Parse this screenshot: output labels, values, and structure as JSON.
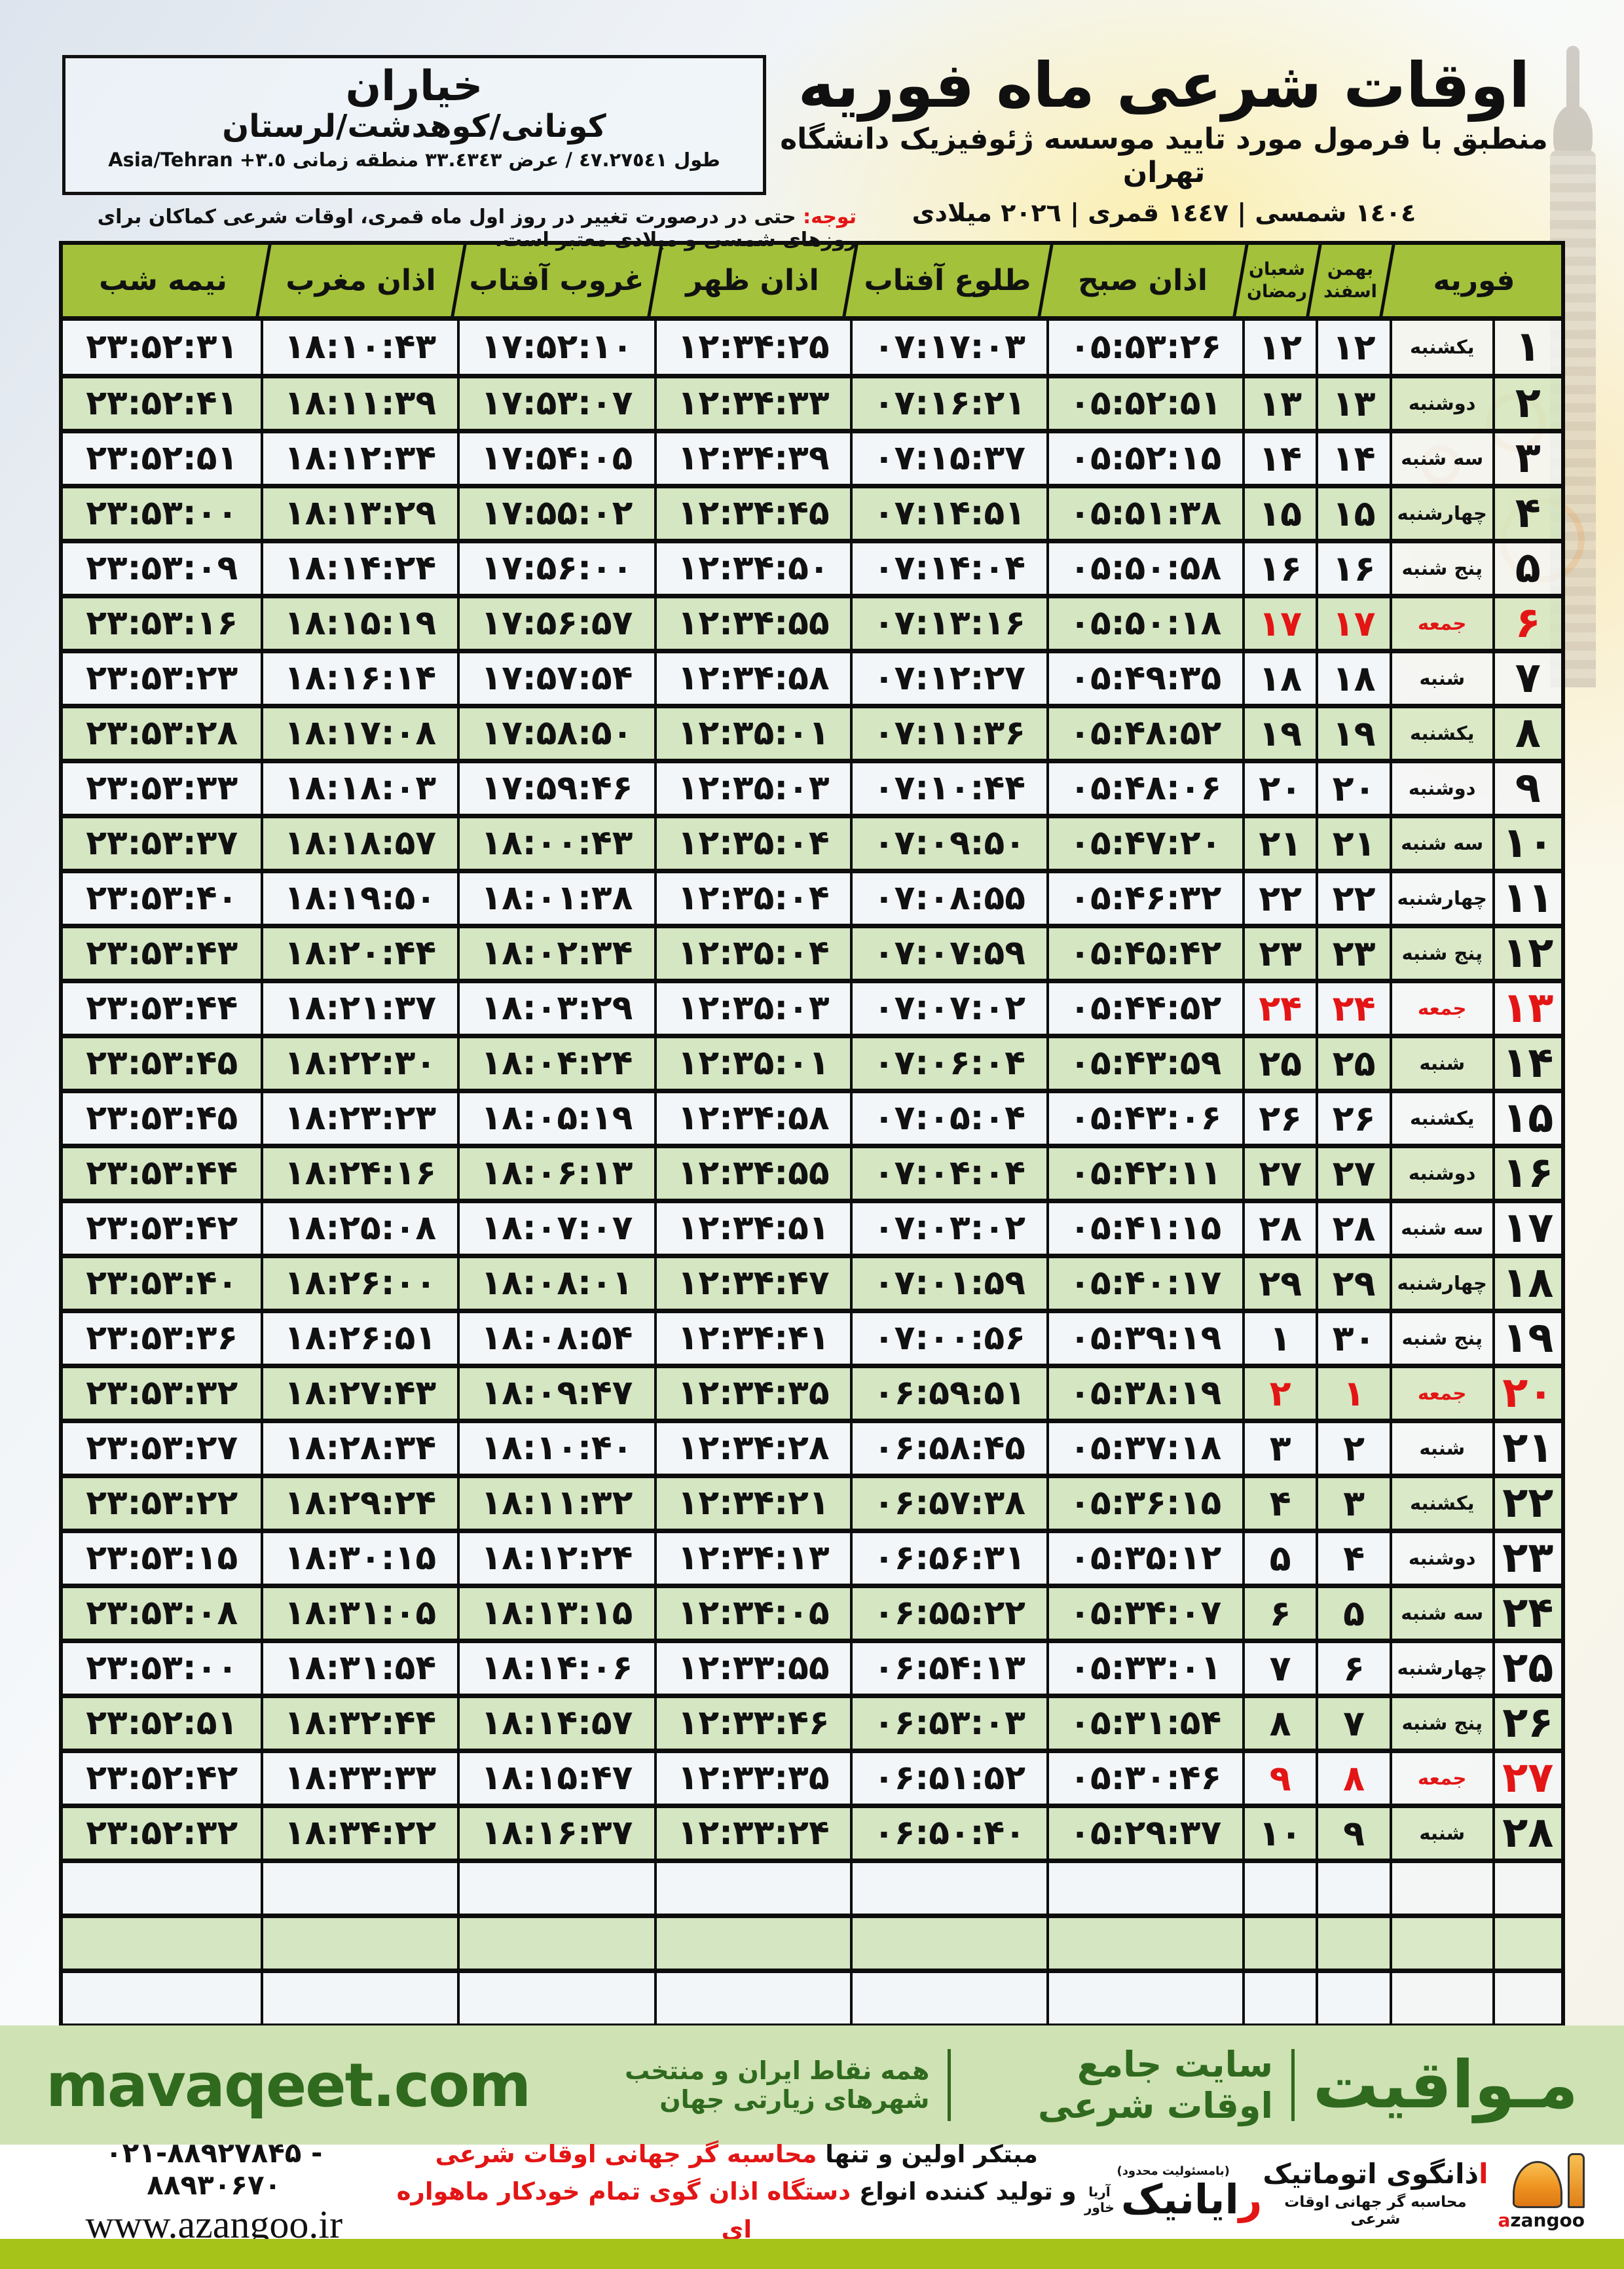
{
  "title_block": {
    "title": "اوقات شرعی ماه فوریه",
    "subtitle": "منطبق با فرمول مورد تایید موسسه ژئوفیزیک دانشگاه تهران",
    "date_line": "١٤٠٤ شمسی | ١٤٤٧ قمری | ٢٠٢٦ میلادی"
  },
  "location_box": {
    "name": "خیاران",
    "region": "کونانی/کوهدشت/لرستان",
    "coords": "طول ٤٧.٢٧٥٤١ / عرض ٣٣.٤٣٤٣ منطقه زمانی",
    "timezone": "Asia/Tehran +٣.٥"
  },
  "notice": {
    "label": "توجه:",
    "text": " حتی در درصورت تغییر در روز اول ماه قمری، اوقات شرعی کماکان برای روزهای شمسی و میلادی معتبر است."
  },
  "table": {
    "headers": {
      "month": "فوریه",
      "solar_top": "بهمن",
      "solar_bottom": "اسفند",
      "lunar_top": "شعبان",
      "lunar_bottom": "رمضان",
      "fajr": "اذان صبح",
      "sunrise": "طلوع آفتاب",
      "dhuhr": "اذان ظهر",
      "sunset": "غروب آفتاب",
      "maghrib": "اذان مغرب",
      "midnight": "نیمه شب"
    },
    "column_keys": [
      "feb",
      "day",
      "solar",
      "lunar",
      "fajr",
      "sunrise",
      "dhuhr",
      "sunset",
      "maghrib",
      "midnight"
    ],
    "empty_row_count": 3,
    "rows": [
      {
        "feb": "۱",
        "day": "یکشنبه",
        "solar": "۱۲",
        "lunar": "۱۲",
        "fajr": "۰۵:۵۳:۲۶",
        "sunrise": "۰۷:۱۷:۰۳",
        "dhuhr": "۱۲:۳۴:۲۵",
        "sunset": "۱۷:۵۲:۱۰",
        "maghrib": "۱۸:۱۰:۴۳",
        "midnight": "۲۳:۵۲:۳۱",
        "friday": false
      },
      {
        "feb": "۲",
        "day": "دوشنبه",
        "solar": "۱۳",
        "lunar": "۱۳",
        "fajr": "۰۵:۵۲:۵۱",
        "sunrise": "۰۷:۱۶:۲۱",
        "dhuhr": "۱۲:۳۴:۳۳",
        "sunset": "۱۷:۵۳:۰۷",
        "maghrib": "۱۸:۱۱:۳۹",
        "midnight": "۲۳:۵۲:۴۱",
        "friday": false
      },
      {
        "feb": "۳",
        "day": "سه شنبه",
        "solar": "۱۴",
        "lunar": "۱۴",
        "fajr": "۰۵:۵۲:۱۵",
        "sunrise": "۰۷:۱۵:۳۷",
        "dhuhr": "۱۲:۳۴:۳۹",
        "sunset": "۱۷:۵۴:۰۵",
        "maghrib": "۱۸:۱۲:۳۴",
        "midnight": "۲۳:۵۲:۵۱",
        "friday": false
      },
      {
        "feb": "۴",
        "day": "چهارشنبه",
        "solar": "۱۵",
        "lunar": "۱۵",
        "fajr": "۰۵:۵۱:۳۸",
        "sunrise": "۰۷:۱۴:۵۱",
        "dhuhr": "۱۲:۳۴:۴۵",
        "sunset": "۱۷:۵۵:۰۲",
        "maghrib": "۱۸:۱۳:۲۹",
        "midnight": "۲۳:۵۳:۰۰",
        "friday": false
      },
      {
        "feb": "۵",
        "day": "پنج شنبه",
        "solar": "۱۶",
        "lunar": "۱۶",
        "fajr": "۰۵:۵۰:۵۸",
        "sunrise": "۰۷:۱۴:۰۴",
        "dhuhr": "۱۲:۳۴:۵۰",
        "sunset": "۱۷:۵۶:۰۰",
        "maghrib": "۱۸:۱۴:۲۴",
        "midnight": "۲۳:۵۳:۰۹",
        "friday": false
      },
      {
        "feb": "۶",
        "day": "جمعه",
        "solar": "۱۷",
        "lunar": "۱۷",
        "fajr": "۰۵:۵۰:۱۸",
        "sunrise": "۰۷:۱۳:۱۶",
        "dhuhr": "۱۲:۳۴:۵۵",
        "sunset": "۱۷:۵۶:۵۷",
        "maghrib": "۱۸:۱۵:۱۹",
        "midnight": "۲۳:۵۳:۱۶",
        "friday": true
      },
      {
        "feb": "۷",
        "day": "شنبه",
        "solar": "۱۸",
        "lunar": "۱۸",
        "fajr": "۰۵:۴۹:۳۵",
        "sunrise": "۰۷:۱۲:۲۷",
        "dhuhr": "۱۲:۳۴:۵۸",
        "sunset": "۱۷:۵۷:۵۴",
        "maghrib": "۱۸:۱۶:۱۴",
        "midnight": "۲۳:۵۳:۲۳",
        "friday": false
      },
      {
        "feb": "۸",
        "day": "یکشنبه",
        "solar": "۱۹",
        "lunar": "۱۹",
        "fajr": "۰۵:۴۸:۵۲",
        "sunrise": "۰۷:۱۱:۳۶",
        "dhuhr": "۱۲:۳۵:۰۱",
        "sunset": "۱۷:۵۸:۵۰",
        "maghrib": "۱۸:۱۷:۰۸",
        "midnight": "۲۳:۵۳:۲۸",
        "friday": false
      },
      {
        "feb": "۹",
        "day": "دوشنبه",
        "solar": "۲۰",
        "lunar": "۲۰",
        "fajr": "۰۵:۴۸:۰۶",
        "sunrise": "۰۷:۱۰:۴۴",
        "dhuhr": "۱۲:۳۵:۰۳",
        "sunset": "۱۷:۵۹:۴۶",
        "maghrib": "۱۸:۱۸:۰۳",
        "midnight": "۲۳:۵۳:۳۳",
        "friday": false
      },
      {
        "feb": "۱۰",
        "day": "سه شنبه",
        "solar": "۲۱",
        "lunar": "۲۱",
        "fajr": "۰۵:۴۷:۲۰",
        "sunrise": "۰۷:۰۹:۵۰",
        "dhuhr": "۱۲:۳۵:۰۴",
        "sunset": "۱۸:۰۰:۴۳",
        "maghrib": "۱۸:۱۸:۵۷",
        "midnight": "۲۳:۵۳:۳۷",
        "friday": false
      },
      {
        "feb": "۱۱",
        "day": "چهارشنبه",
        "solar": "۲۲",
        "lunar": "۲۲",
        "fajr": "۰۵:۴۶:۳۲",
        "sunrise": "۰۷:۰۸:۵۵",
        "dhuhr": "۱۲:۳۵:۰۴",
        "sunset": "۱۸:۰۱:۳۸",
        "maghrib": "۱۸:۱۹:۵۰",
        "midnight": "۲۳:۵۳:۴۰",
        "friday": false
      },
      {
        "feb": "۱۲",
        "day": "پنج شنبه",
        "solar": "۲۳",
        "lunar": "۲۳",
        "fajr": "۰۵:۴۵:۴۲",
        "sunrise": "۰۷:۰۷:۵۹",
        "dhuhr": "۱۲:۳۵:۰۴",
        "sunset": "۱۸:۰۲:۳۴",
        "maghrib": "۱۸:۲۰:۴۴",
        "midnight": "۲۳:۵۳:۴۳",
        "friday": false
      },
      {
        "feb": "۱۳",
        "day": "جمعه",
        "solar": "۲۴",
        "lunar": "۲۴",
        "fajr": "۰۵:۴۴:۵۲",
        "sunrise": "۰۷:۰۷:۰۲",
        "dhuhr": "۱۲:۳۵:۰۳",
        "sunset": "۱۸:۰۳:۲۹",
        "maghrib": "۱۸:۲۱:۳۷",
        "midnight": "۲۳:۵۳:۴۴",
        "friday": true
      },
      {
        "feb": "۱۴",
        "day": "شنبه",
        "solar": "۲۵",
        "lunar": "۲۵",
        "fajr": "۰۵:۴۳:۵۹",
        "sunrise": "۰۷:۰۶:۰۴",
        "dhuhr": "۱۲:۳۵:۰۱",
        "sunset": "۱۸:۰۴:۲۴",
        "maghrib": "۱۸:۲۲:۳۰",
        "midnight": "۲۳:۵۳:۴۵",
        "friday": false
      },
      {
        "feb": "۱۵",
        "day": "یکشنبه",
        "solar": "۲۶",
        "lunar": "۲۶",
        "fajr": "۰۵:۴۳:۰۶",
        "sunrise": "۰۷:۰۵:۰۴",
        "dhuhr": "۱۲:۳۴:۵۸",
        "sunset": "۱۸:۰۵:۱۹",
        "maghrib": "۱۸:۲۳:۲۳",
        "midnight": "۲۳:۵۳:۴۵",
        "friday": false
      },
      {
        "feb": "۱۶",
        "day": "دوشنبه",
        "solar": "۲۷",
        "lunar": "۲۷",
        "fajr": "۰۵:۴۲:۱۱",
        "sunrise": "۰۷:۰۴:۰۴",
        "dhuhr": "۱۲:۳۴:۵۵",
        "sunset": "۱۸:۰۶:۱۳",
        "maghrib": "۱۸:۲۴:۱۶",
        "midnight": "۲۳:۵۳:۴۴",
        "friday": false
      },
      {
        "feb": "۱۷",
        "day": "سه شنبه",
        "solar": "۲۸",
        "lunar": "۲۸",
        "fajr": "۰۵:۴۱:۱۵",
        "sunrise": "۰۷:۰۳:۰۲",
        "dhuhr": "۱۲:۳۴:۵۱",
        "sunset": "۱۸:۰۷:۰۷",
        "maghrib": "۱۸:۲۵:۰۸",
        "midnight": "۲۳:۵۳:۴۲",
        "friday": false
      },
      {
        "feb": "۱۸",
        "day": "چهارشنبه",
        "solar": "۲۹",
        "lunar": "۲۹",
        "fajr": "۰۵:۴۰:۱۷",
        "sunrise": "۰۷:۰۱:۵۹",
        "dhuhr": "۱۲:۳۴:۴۷",
        "sunset": "۱۸:۰۸:۰۱",
        "maghrib": "۱۸:۲۶:۰۰",
        "midnight": "۲۳:۵۳:۴۰",
        "friday": false
      },
      {
        "feb": "۱۹",
        "day": "پنج شنبه",
        "solar": "۳۰",
        "lunar": "۱",
        "fajr": "۰۵:۳۹:۱۹",
        "sunrise": "۰۷:۰۰:۵۶",
        "dhuhr": "۱۲:۳۴:۴۱",
        "sunset": "۱۸:۰۸:۵۴",
        "maghrib": "۱۸:۲۶:۵۱",
        "midnight": "۲۳:۵۳:۳۶",
        "friday": false
      },
      {
        "feb": "۲۰",
        "day": "جمعه",
        "solar": "۱",
        "lunar": "۲",
        "fajr": "۰۵:۳۸:۱۹",
        "sunrise": "۰۶:۵۹:۵۱",
        "dhuhr": "۱۲:۳۴:۳۵",
        "sunset": "۱۸:۰۹:۴۷",
        "maghrib": "۱۸:۲۷:۴۳",
        "midnight": "۲۳:۵۳:۳۲",
        "friday": true
      },
      {
        "feb": "۲۱",
        "day": "شنبه",
        "solar": "۲",
        "lunar": "۳",
        "fajr": "۰۵:۳۷:۱۸",
        "sunrise": "۰۶:۵۸:۴۵",
        "dhuhr": "۱۲:۳۴:۲۸",
        "sunset": "۱۸:۱۰:۴۰",
        "maghrib": "۱۸:۲۸:۳۴",
        "midnight": "۲۳:۵۳:۲۷",
        "friday": false
      },
      {
        "feb": "۲۲",
        "day": "یکشنبه",
        "solar": "۳",
        "lunar": "۴",
        "fajr": "۰۵:۳۶:۱۵",
        "sunrise": "۰۶:۵۷:۳۸",
        "dhuhr": "۱۲:۳۴:۲۱",
        "sunset": "۱۸:۱۱:۳۲",
        "maghrib": "۱۸:۲۹:۲۴",
        "midnight": "۲۳:۵۳:۲۲",
        "friday": false
      },
      {
        "feb": "۲۳",
        "day": "دوشنبه",
        "solar": "۴",
        "lunar": "۵",
        "fajr": "۰۵:۳۵:۱۲",
        "sunrise": "۰۶:۵۶:۳۱",
        "dhuhr": "۱۲:۳۴:۱۳",
        "sunset": "۱۸:۱۲:۲۴",
        "maghrib": "۱۸:۳۰:۱۵",
        "midnight": "۲۳:۵۳:۱۵",
        "friday": false
      },
      {
        "feb": "۲۴",
        "day": "سه شنبه",
        "solar": "۵",
        "lunar": "۶",
        "fajr": "۰۵:۳۴:۰۷",
        "sunrise": "۰۶:۵۵:۲۲",
        "dhuhr": "۱۲:۳۴:۰۵",
        "sunset": "۱۸:۱۳:۱۵",
        "maghrib": "۱۸:۳۱:۰۵",
        "midnight": "۲۳:۵۳:۰۸",
        "friday": false
      },
      {
        "feb": "۲۵",
        "day": "چهارشنبه",
        "solar": "۶",
        "lunar": "۷",
        "fajr": "۰۵:۳۳:۰۱",
        "sunrise": "۰۶:۵۴:۱۳",
        "dhuhr": "۱۲:۳۳:۵۵",
        "sunset": "۱۸:۱۴:۰۶",
        "maghrib": "۱۸:۳۱:۵۴",
        "midnight": "۲۳:۵۳:۰۰",
        "friday": false
      },
      {
        "feb": "۲۶",
        "day": "پنج شنبه",
        "solar": "۷",
        "lunar": "۸",
        "fajr": "۰۵:۳۱:۵۴",
        "sunrise": "۰۶:۵۳:۰۳",
        "dhuhr": "۱۲:۳۳:۴۶",
        "sunset": "۱۸:۱۴:۵۷",
        "maghrib": "۱۸:۳۲:۴۴",
        "midnight": "۲۳:۵۲:۵۱",
        "friday": false
      },
      {
        "feb": "۲۷",
        "day": "جمعه",
        "solar": "۸",
        "lunar": "۹",
        "fajr": "۰۵:۳۰:۴۶",
        "sunrise": "۰۶:۵۱:۵۲",
        "dhuhr": "۱۲:۳۳:۳۵",
        "sunset": "۱۸:۱۵:۴۷",
        "maghrib": "۱۸:۳۳:۳۳",
        "midnight": "۲۳:۵۲:۴۲",
        "friday": true
      },
      {
        "feb": "۲۸",
        "day": "شنبه",
        "solar": "۹",
        "lunar": "۱۰",
        "fajr": "۰۵:۲۹:۳۷",
        "sunrise": "۰۶:۵۰:۴۰",
        "dhuhr": "۱۲:۳۳:۲۴",
        "sunset": "۱۸:۱۶:۳۷",
        "maghrib": "۱۸:۳۴:۲۲",
        "midnight": "۲۳:۵۲:۳۲",
        "friday": false
      }
    ]
  },
  "brand_band": {
    "brand_fa": "مـواقیت",
    "tagline1": "سایت جامع اوقات شرعی",
    "tagline2": "همه نقاط ایران و منتخب شهرهای زیارتی جهان",
    "domain": "mavaqeet.com"
  },
  "footer": {
    "phones": "۰۲۱-۸۸۹۲۷۸۴۵ - ۸۸۹۳۰۶۷۰",
    "website": "www.azangoo.ir",
    "promo_line1_black": "مبتکر اولین و تنها ",
    "promo_line1_red": "محاسبه گر جهانی اوقات شرعی",
    "promo_line2_black": "و تولید کننده انواع ",
    "promo_line2_red": "دستگاه اذان گوی تمام خودکار ماهواره ای",
    "rayanik": {
      "note": "(بامسئولیت محدود)",
      "name_initial": "ر",
      "name_rest": "ایانیک",
      "sub_top": "آریا",
      "sub_bottom": "خاور"
    },
    "azangoo": {
      "title_initial": "ا",
      "title_rest": "ذانگوی اتوماتیک",
      "subtitle": "محاسبه گر جهانی اوقات شرعی",
      "latin_initial": "a",
      "latin_rest": "zangoo"
    }
  },
  "colors": {
    "accent_red": "#e31515",
    "header_green": "#a3c13a",
    "row_green": "#d5e6c2",
    "row_light": "#f3f6f9",
    "band_green": "#cfe2b4",
    "dark_green": "#2f6a1e",
    "bottom_bar_green": "#a6c319"
  }
}
